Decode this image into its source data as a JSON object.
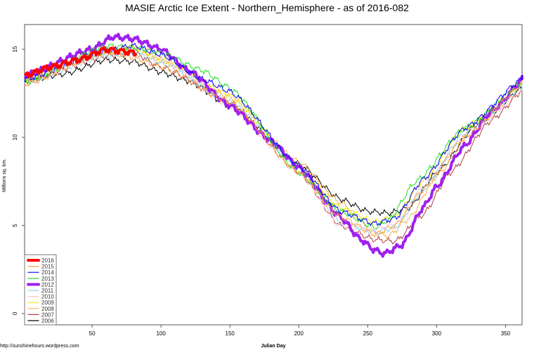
{
  "chart_data": {
    "type": "line",
    "title": "MASIE Arctic Ice Extent - Northern_Hemisphere - as of 2016-082",
    "xlabel": "Julian Day",
    "ylabel": "Millions sq. km.",
    "credit": "http://sunshinehours.wordpress.com",
    "xlim": [
      1,
      362
    ],
    "ylim": [
      -0.64,
      16.4
    ],
    "xticks": [
      50,
      100,
      150,
      200,
      250,
      300,
      350
    ],
    "yticks": [
      0,
      5,
      10,
      15
    ],
    "grid": false,
    "legend_position": "bottom-left",
    "series": [
      {
        "name": "2016",
        "color": "#FF0000",
        "width": 4,
        "points": [
          [
            1,
            13.5
          ],
          [
            20,
            14.0
          ],
          [
            40,
            14.4
          ],
          [
            60,
            15.0
          ],
          [
            70,
            14.9
          ],
          [
            82,
            14.8
          ]
        ]
      },
      {
        "name": "2015",
        "color": "#FFA040",
        "width": 1,
        "points": [
          [
            1,
            13.0
          ],
          [
            60,
            14.9
          ],
          [
            80,
            14.5
          ],
          [
            100,
            14.0
          ],
          [
            150,
            12.0
          ],
          [
            200,
            8.0
          ],
          [
            230,
            5.5
          ],
          [
            255,
            4.5
          ],
          [
            270,
            5.0
          ],
          [
            290,
            7.0
          ],
          [
            320,
            10.0
          ],
          [
            366,
            13.2
          ]
        ]
      },
      {
        "name": "2014",
        "color": "#0000FF",
        "width": 1,
        "points": [
          [
            1,
            13.3
          ],
          [
            60,
            14.9
          ],
          [
            80,
            15.2
          ],
          [
            100,
            14.7
          ],
          [
            130,
            13.3
          ],
          [
            150,
            12.6
          ],
          [
            200,
            8.4
          ],
          [
            230,
            5.8
          ],
          [
            255,
            5.1
          ],
          [
            270,
            5.4
          ],
          [
            290,
            7.6
          ],
          [
            320,
            10.5
          ],
          [
            366,
            13.5
          ]
        ]
      },
      {
        "name": "2013",
        "color": "#22DD22",
        "width": 1,
        "points": [
          [
            1,
            13.1
          ],
          [
            60,
            15.2
          ],
          [
            80,
            15.1
          ],
          [
            100,
            14.8
          ],
          [
            130,
            13.8
          ],
          [
            150,
            12.8
          ],
          [
            200,
            8.0
          ],
          [
            230,
            5.8
          ],
          [
            255,
            4.9
          ],
          [
            265,
            5.3
          ],
          [
            285,
            7.5
          ],
          [
            320,
            10.5
          ],
          [
            366,
            13.3
          ]
        ]
      },
      {
        "name": "2012",
        "color": "#A020F0",
        "width": 4,
        "points": [
          [
            1,
            13.5
          ],
          [
            50,
            15.0
          ],
          [
            65,
            15.7
          ],
          [
            80,
            15.6
          ],
          [
            100,
            15.0
          ],
          [
            120,
            13.8
          ],
          [
            150,
            11.8
          ],
          [
            180,
            9.8
          ],
          [
            200,
            8.3
          ],
          [
            230,
            5.5
          ],
          [
            245,
            4.2
          ],
          [
            255,
            3.6
          ],
          [
            262,
            3.4
          ],
          [
            275,
            3.9
          ],
          [
            290,
            6.0
          ],
          [
            300,
            7.2
          ],
          [
            320,
            9.5
          ],
          [
            340,
            11.5
          ],
          [
            366,
            13.5
          ]
        ]
      },
      {
        "name": "2011",
        "color": "#90D8F0",
        "width": 1,
        "points": [
          [
            1,
            13.2
          ],
          [
            60,
            14.6
          ],
          [
            80,
            14.8
          ],
          [
            100,
            14.2
          ],
          [
            150,
            12.0
          ],
          [
            200,
            8.3
          ],
          [
            230,
            5.2
          ],
          [
            255,
            4.6
          ],
          [
            270,
            4.9
          ],
          [
            290,
            7.0
          ],
          [
            320,
            10.2
          ],
          [
            366,
            13.0
          ]
        ]
      },
      {
        "name": "2010",
        "color": "#FFC8D0",
        "width": 1,
        "points": [
          [
            1,
            13.0
          ],
          [
            60,
            14.8
          ],
          [
            85,
            15.2
          ],
          [
            100,
            14.4
          ],
          [
            150,
            11.8
          ],
          [
            200,
            8.0
          ],
          [
            230,
            5.0
          ],
          [
            255,
            4.8
          ],
          [
            270,
            5.1
          ],
          [
            290,
            7.2
          ],
          [
            320,
            10.0
          ],
          [
            366,
            12.8
          ]
        ]
      },
      {
        "name": "2009",
        "color": "#E8E800",
        "width": 1,
        "points": [
          [
            1,
            13.2
          ],
          [
            60,
            14.8
          ],
          [
            80,
            15.0
          ],
          [
            100,
            14.4
          ],
          [
            150,
            12.4
          ],
          [
            200,
            8.4
          ],
          [
            230,
            6.0
          ],
          [
            255,
            5.2
          ],
          [
            270,
            5.5
          ],
          [
            290,
            7.5
          ],
          [
            320,
            10.5
          ],
          [
            366,
            13.1
          ]
        ]
      },
      {
        "name": "2008",
        "color": "#FFB050",
        "width": 1,
        "points": [
          [
            1,
            13.4
          ],
          [
            60,
            15.0
          ],
          [
            80,
            15.1
          ],
          [
            100,
            14.4
          ],
          [
            150,
            12.3
          ],
          [
            200,
            8.6
          ],
          [
            230,
            6.3
          ],
          [
            255,
            4.6
          ],
          [
            265,
            4.4
          ],
          [
            280,
            5.4
          ],
          [
            300,
            7.8
          ],
          [
            330,
            10.9
          ],
          [
            366,
            13.0
          ]
        ]
      },
      {
        "name": "2007",
        "color": "#B04040",
        "width": 1,
        "points": [
          [
            1,
            13.2
          ],
          [
            60,
            14.6
          ],
          [
            80,
            14.8
          ],
          [
            100,
            14.0
          ],
          [
            150,
            12.0
          ],
          [
            200,
            8.0
          ],
          [
            230,
            5.0
          ],
          [
            255,
            4.2
          ],
          [
            270,
            4.1
          ],
          [
            290,
            5.6
          ],
          [
            310,
            8.0
          ],
          [
            340,
            11.0
          ],
          [
            366,
            12.9
          ]
        ]
      },
      {
        "name": "2006",
        "color": "#000000",
        "width": 1,
        "points": [
          [
            1,
            13.2
          ],
          [
            30,
            13.6
          ],
          [
            60,
            14.4
          ],
          [
            80,
            14.3
          ],
          [
            100,
            13.7
          ],
          [
            120,
            13.2
          ],
          [
            150,
            11.8
          ],
          [
            200,
            8.5
          ],
          [
            230,
            6.5
          ],
          [
            250,
            5.8
          ],
          [
            265,
            5.7
          ],
          [
            280,
            6.0
          ],
          [
            300,
            8.0
          ],
          [
            330,
            10.8
          ],
          [
            366,
            13.0
          ]
        ]
      }
    ]
  }
}
